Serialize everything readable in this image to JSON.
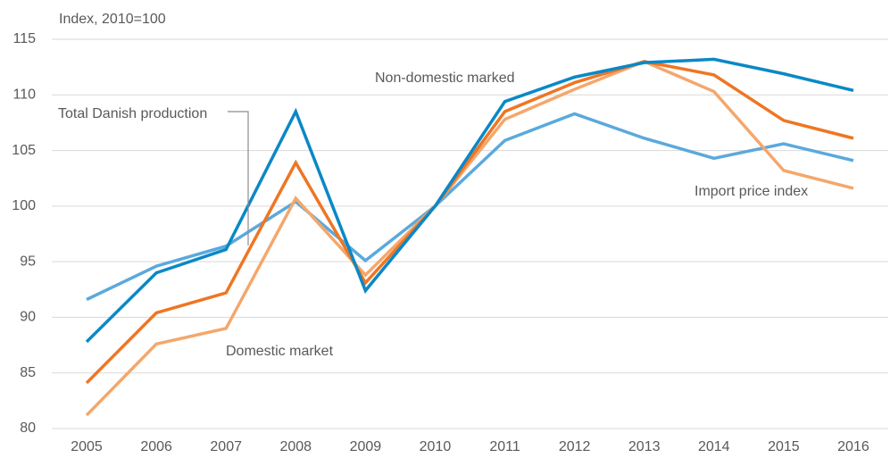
{
  "chart_data": {
    "type": "line",
    "y_axis_label": "Index, 2010=100",
    "categories": [
      "2005",
      "2006",
      "2007",
      "2008",
      "2009",
      "2010",
      "2011",
      "2012",
      "2013",
      "2014",
      "2015",
      "2016"
    ],
    "series": [
      {
        "name": "Non-domestic marked",
        "color": "#0a88c6",
        "values": [
          87.8,
          94.0,
          96.1,
          108.5,
          92.4,
          100,
          109.4,
          111.6,
          112.9,
          113.2,
          111.9,
          110.4
        ]
      },
      {
        "name": "Total Danish production",
        "color": "#ee7624",
        "values": [
          84.1,
          90.4,
          92.2,
          103.9,
          93.1,
          100,
          108.5,
          111.1,
          113.0,
          111.8,
          107.7,
          106.1
        ]
      },
      {
        "name": "Domestic market",
        "color": "#f4a76c",
        "values": [
          81.2,
          87.6,
          89.0,
          100.7,
          93.8,
          100,
          107.8,
          110.5,
          113.0,
          110.3,
          103.2,
          101.6
        ]
      },
      {
        "name": "Import price index",
        "color": "#5aa9dd",
        "values": [
          91.6,
          94.6,
          96.4,
          100.4,
          95.1,
          100,
          105.9,
          108.3,
          106.1,
          104.3,
          105.6,
          104.1
        ]
      }
    ],
    "ylim": [
      80,
      115
    ],
    "yticks": [
      80,
      85,
      90,
      95,
      100,
      105,
      110,
      115
    ],
    "grid": true
  }
}
